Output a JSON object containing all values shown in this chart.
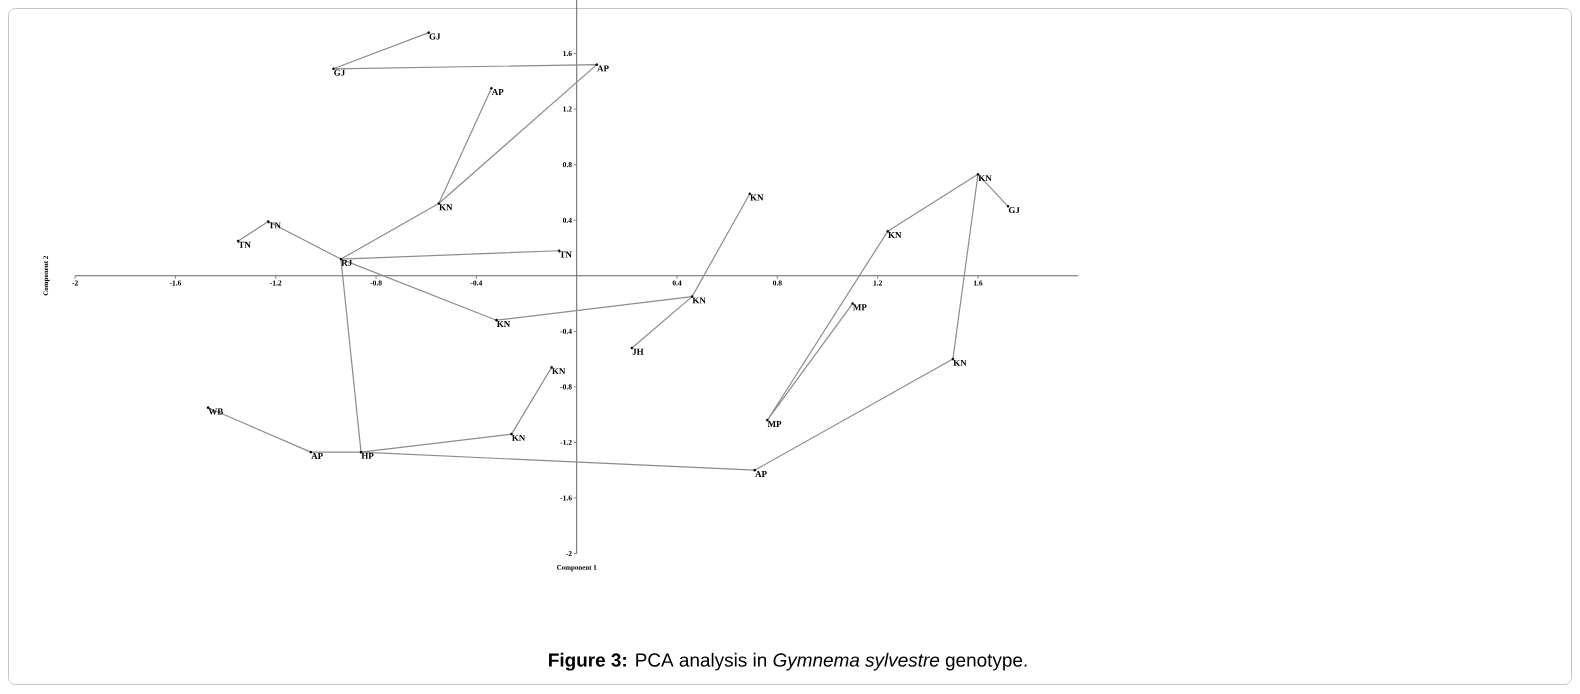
{
  "chart_data": {
    "type": "scatter",
    "title": "**Figure 3:** PCA analysis in *Gymnema sylvestre* genotype.",
    "xlabel": "Component 1",
    "ylabel": "Component 2",
    "xlim": [
      -2,
      2
    ],
    "ylim": [
      -2,
      2
    ],
    "xticks": [
      -2,
      -1.6,
      -1.2,
      -0.8,
      -0.4,
      0.4,
      0.8,
      1.2,
      1.6
    ],
    "yticks": [
      -2,
      -1.6,
      -1.2,
      -0.8,
      -0.4,
      0.4,
      0.8,
      1.2,
      1.6
    ],
    "series": [
      {
        "type": "line",
        "color": "#8c8c8c",
        "x": [
          -0.59,
          -0.97,
          0.08,
          -0.55,
          -0.94,
          -1.23,
          -1.35
        ],
        "values": [
          1.75,
          1.49,
          1.52,
          0.52,
          0.12,
          0.39,
          0.25
        ]
      },
      {
        "type": "line",
        "color": "#8c8c8c",
        "x": [
          -0.34,
          -0.55
        ],
        "values": [
          1.35,
          0.52
        ]
      },
      {
        "type": "line",
        "color": "#8c8c8c",
        "x": [
          -0.07,
          -0.94,
          -0.86,
          -1.06,
          -1.47
        ],
        "values": [
          0.18,
          0.12,
          -1.27,
          -1.27,
          -0.95
        ]
      },
      {
        "type": "line",
        "color": "#8c8c8c",
        "x": [
          -0.94,
          -0.32,
          0.46,
          0.69
        ],
        "values": [
          0.12,
          -0.32,
          -0.15,
          0.59
        ]
      },
      {
        "type": "line",
        "color": "#8c8c8c",
        "x": [
          0.46,
          0.22
        ],
        "values": [
          -0.15,
          -0.52
        ]
      },
      {
        "type": "line",
        "color": "#8c8c8c",
        "x": [
          -0.86,
          -0.26,
          -0.1
        ],
        "values": [
          -1.27,
          -1.14,
          -0.66
        ]
      },
      {
        "type": "line",
        "color": "#8c8c8c",
        "x": [
          -0.86,
          0.71,
          1.5,
          1.6,
          1.24,
          0.76,
          1.1
        ],
        "values": [
          -1.27,
          -1.4,
          -0.6,
          0.73,
          0.32,
          -1.04,
          -0.2
        ]
      },
      {
        "type": "line",
        "color": "#8c8c8c",
        "x": [
          1.6,
          1.72
        ],
        "values": [
          0.73,
          0.5
        ]
      },
      {
        "color": "#000000",
        "marker": "circle",
        "x": [
          -0.59,
          -0.97,
          0.08,
          -0.34,
          -0.55,
          -1.23,
          -1.35,
          -0.94,
          -0.07,
          -0.32,
          0.46,
          0.69,
          0.22,
          -0.86,
          -1.06,
          -1.47,
          -0.26,
          -0.1,
          0.71,
          1.5,
          1.6,
          1.72,
          1.24,
          0.76,
          1.1
        ],
        "values": [
          1.75,
          1.49,
          1.52,
          1.35,
          0.52,
          0.39,
          0.25,
          0.12,
          0.18,
          -0.32,
          -0.15,
          0.59,
          -0.52,
          -1.27,
          -1.27,
          -0.95,
          -1.14,
          -0.66,
          -1.4,
          -0.6,
          0.73,
          0.5,
          0.32,
          -1.04,
          -0.2
        ],
        "value_labels": [
          "GJ",
          "GJ",
          "AP",
          "AP",
          "KN",
          "TN",
          "TN",
          "RJ",
          "TN",
          "KN",
          "KN",
          "KN",
          "JH",
          "HP",
          "AP",
          "WB",
          "KN",
          "KN",
          "AP",
          "KN",
          "KN",
          "GJ",
          "KN",
          "MP",
          "MP"
        ]
      }
    ]
  }
}
